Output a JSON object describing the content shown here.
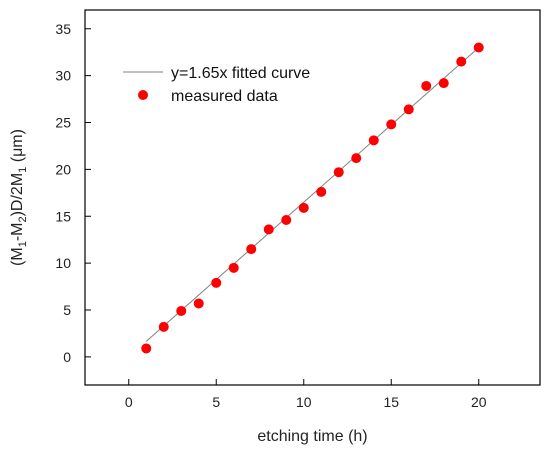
{
  "chart_data": {
    "type": "scatter",
    "xlabel": "etching time (h)",
    "ylabel": "(M1-M2)D/2M1 (μm)",
    "ylabel_parts": {
      "p1": "(M",
      "s1": "1",
      "p2": "-M",
      "s2": "2",
      "p3": ")D/2M",
      "s3": "1",
      "p4": " (μm)"
    },
    "xlim": [
      -2.5,
      23.5
    ],
    "ylim": [
      -3,
      37
    ],
    "xticks": [
      0,
      5,
      10,
      15,
      20
    ],
    "yticks": [
      0,
      5,
      10,
      15,
      20,
      25,
      30,
      35
    ],
    "grid": false,
    "legend_position": "top-left",
    "series": [
      {
        "name": "y=1.65x fitted curve",
        "kind": "line",
        "color": "#808080",
        "x": [
          1,
          20
        ],
        "y": [
          1.65,
          33.0
        ]
      },
      {
        "name": "measured data",
        "kind": "scatter",
        "color": "#ff0000",
        "x": [
          1,
          2,
          3,
          4,
          5,
          6,
          7,
          8,
          9,
          10,
          11,
          12,
          13,
          14,
          15,
          16,
          17,
          18,
          19,
          20
        ],
        "y": [
          0.9,
          3.2,
          4.9,
          5.7,
          7.9,
          9.5,
          11.5,
          13.6,
          14.6,
          15.9,
          17.6,
          19.7,
          21.2,
          23.1,
          24.8,
          26.4,
          28.9,
          29.2,
          31.5,
          33.0
        ]
      }
    ]
  }
}
